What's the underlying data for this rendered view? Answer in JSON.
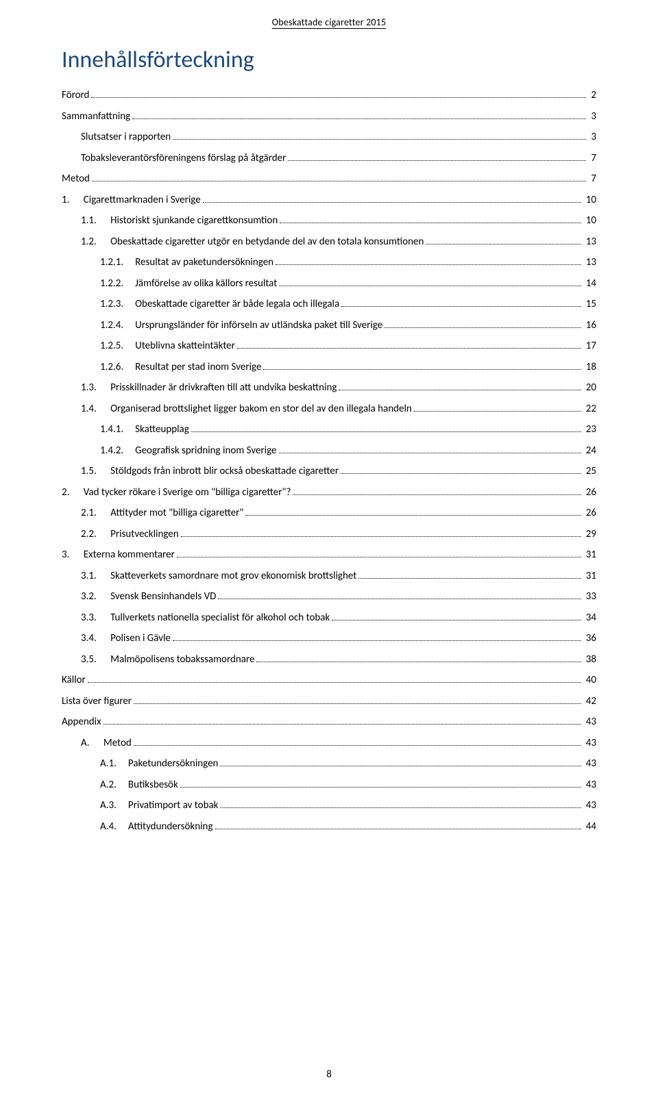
{
  "header": "Obeskattade cigaretter 2015",
  "title": "Innehållsförteckning",
  "page_number": "8",
  "toc": [
    {
      "level": 1,
      "num": "",
      "text": "Förord",
      "page": "2"
    },
    {
      "level": 1,
      "num": "",
      "text": "Sammanfattning",
      "page": "3"
    },
    {
      "level": 2,
      "num": "",
      "text": "Slutsatser i rapporten",
      "page": "3"
    },
    {
      "level": 2,
      "num": "",
      "text": "Tobaksleverantörsföreningens förslag på åtgärder",
      "page": "7"
    },
    {
      "level": 1,
      "num": "",
      "text": "Metod",
      "page": "7"
    },
    {
      "level": 1,
      "num": "1.",
      "text": "Cigarettmarknaden i Sverige",
      "page": "10"
    },
    {
      "level": 2,
      "num": "1.1.",
      "text": "Historiskt sjunkande cigarettkonsumtion",
      "page": "10"
    },
    {
      "level": 2,
      "num": "1.2.",
      "text": "Obeskattade cigaretter utgör en betydande del av den totala konsumtionen",
      "page": "13"
    },
    {
      "level": 3,
      "num": "1.2.1.",
      "text": "Resultat av paketundersökningen",
      "page": "13"
    },
    {
      "level": 3,
      "num": "1.2.2.",
      "text": "Jämförelse av olika källors resultat",
      "page": "14"
    },
    {
      "level": 3,
      "num": "1.2.3.",
      "text": "Obeskattade cigaretter är både legala och illegala",
      "page": "15"
    },
    {
      "level": 3,
      "num": "1.2.4.",
      "text": "Ursprungsländer för införseln av utländska paket till Sverige",
      "page": "16"
    },
    {
      "level": 3,
      "num": "1.2.5.",
      "text": "Uteblivna skatteintäkter",
      "page": "17"
    },
    {
      "level": 3,
      "num": "1.2.6.",
      "text": "Resultat per stad inom Sverige",
      "page": "18"
    },
    {
      "level": 2,
      "num": "1.3.",
      "text": "Prisskillnader är drivkraften till att undvika beskattning",
      "page": "20"
    },
    {
      "level": 2,
      "num": "1.4.",
      "text": "Organiserad brottslighet ligger bakom en stor del av den illegala handeln",
      "page": "22"
    },
    {
      "level": 3,
      "num": "1.4.1.",
      "text": "Skatteupplag",
      "page": "23"
    },
    {
      "level": 3,
      "num": "1.4.2.",
      "text": "Geografisk spridning inom Sverige",
      "page": "24"
    },
    {
      "level": 2,
      "num": "1.5.",
      "text": "Stöldgods från inbrott blir också obeskattade cigaretter",
      "page": "25"
    },
    {
      "level": 1,
      "num": "2.",
      "text": "Vad tycker rökare i Sverige om \"billiga cigaretter\"?",
      "page": "26"
    },
    {
      "level": 2,
      "num": "2.1.",
      "text": "Attityder mot \"billiga cigaretter\"",
      "page": "26"
    },
    {
      "level": 2,
      "num": "2.2.",
      "text": "Prisutvecklingen",
      "page": "29"
    },
    {
      "level": 1,
      "num": "3.",
      "text": "Externa kommentarer",
      "page": "31"
    },
    {
      "level": 2,
      "num": "3.1.",
      "text": "Skatteverkets samordnare mot grov ekonomisk brottslighet",
      "page": "31"
    },
    {
      "level": 2,
      "num": "3.2.",
      "text": "Svensk Bensinhandels VD",
      "page": "33"
    },
    {
      "level": 2,
      "num": "3.3.",
      "text": "Tullverkets nationella specialist för alkohol och tobak",
      "page": "34"
    },
    {
      "level": 2,
      "num": "3.4.",
      "text": "Polisen i Gävle",
      "page": "36"
    },
    {
      "level": 2,
      "num": "3.5.",
      "text": "Malmöpolisens tobakssamordnare",
      "page": "38"
    },
    {
      "level": 1,
      "num": "",
      "text": "Källor",
      "page": "40"
    },
    {
      "level": 1,
      "num": "",
      "text": "Lista över figurer",
      "page": "42"
    },
    {
      "level": 1,
      "num": "",
      "text": "Appendix",
      "page": "43"
    },
    {
      "level": 2,
      "num": "A.",
      "text": "Metod",
      "page": "43"
    },
    {
      "level": 3,
      "num": "A.1.",
      "text": "Paketundersökningen",
      "page": "43"
    },
    {
      "level": 3,
      "num": "A.2.",
      "text": "Butiksbesök",
      "page": "43"
    },
    {
      "level": 3,
      "num": "A.3.",
      "text": "Privatimport av tobak",
      "page": "43"
    },
    {
      "level": 3,
      "num": "A.4.",
      "text": "Attitydundersökning",
      "page": "44"
    }
  ]
}
